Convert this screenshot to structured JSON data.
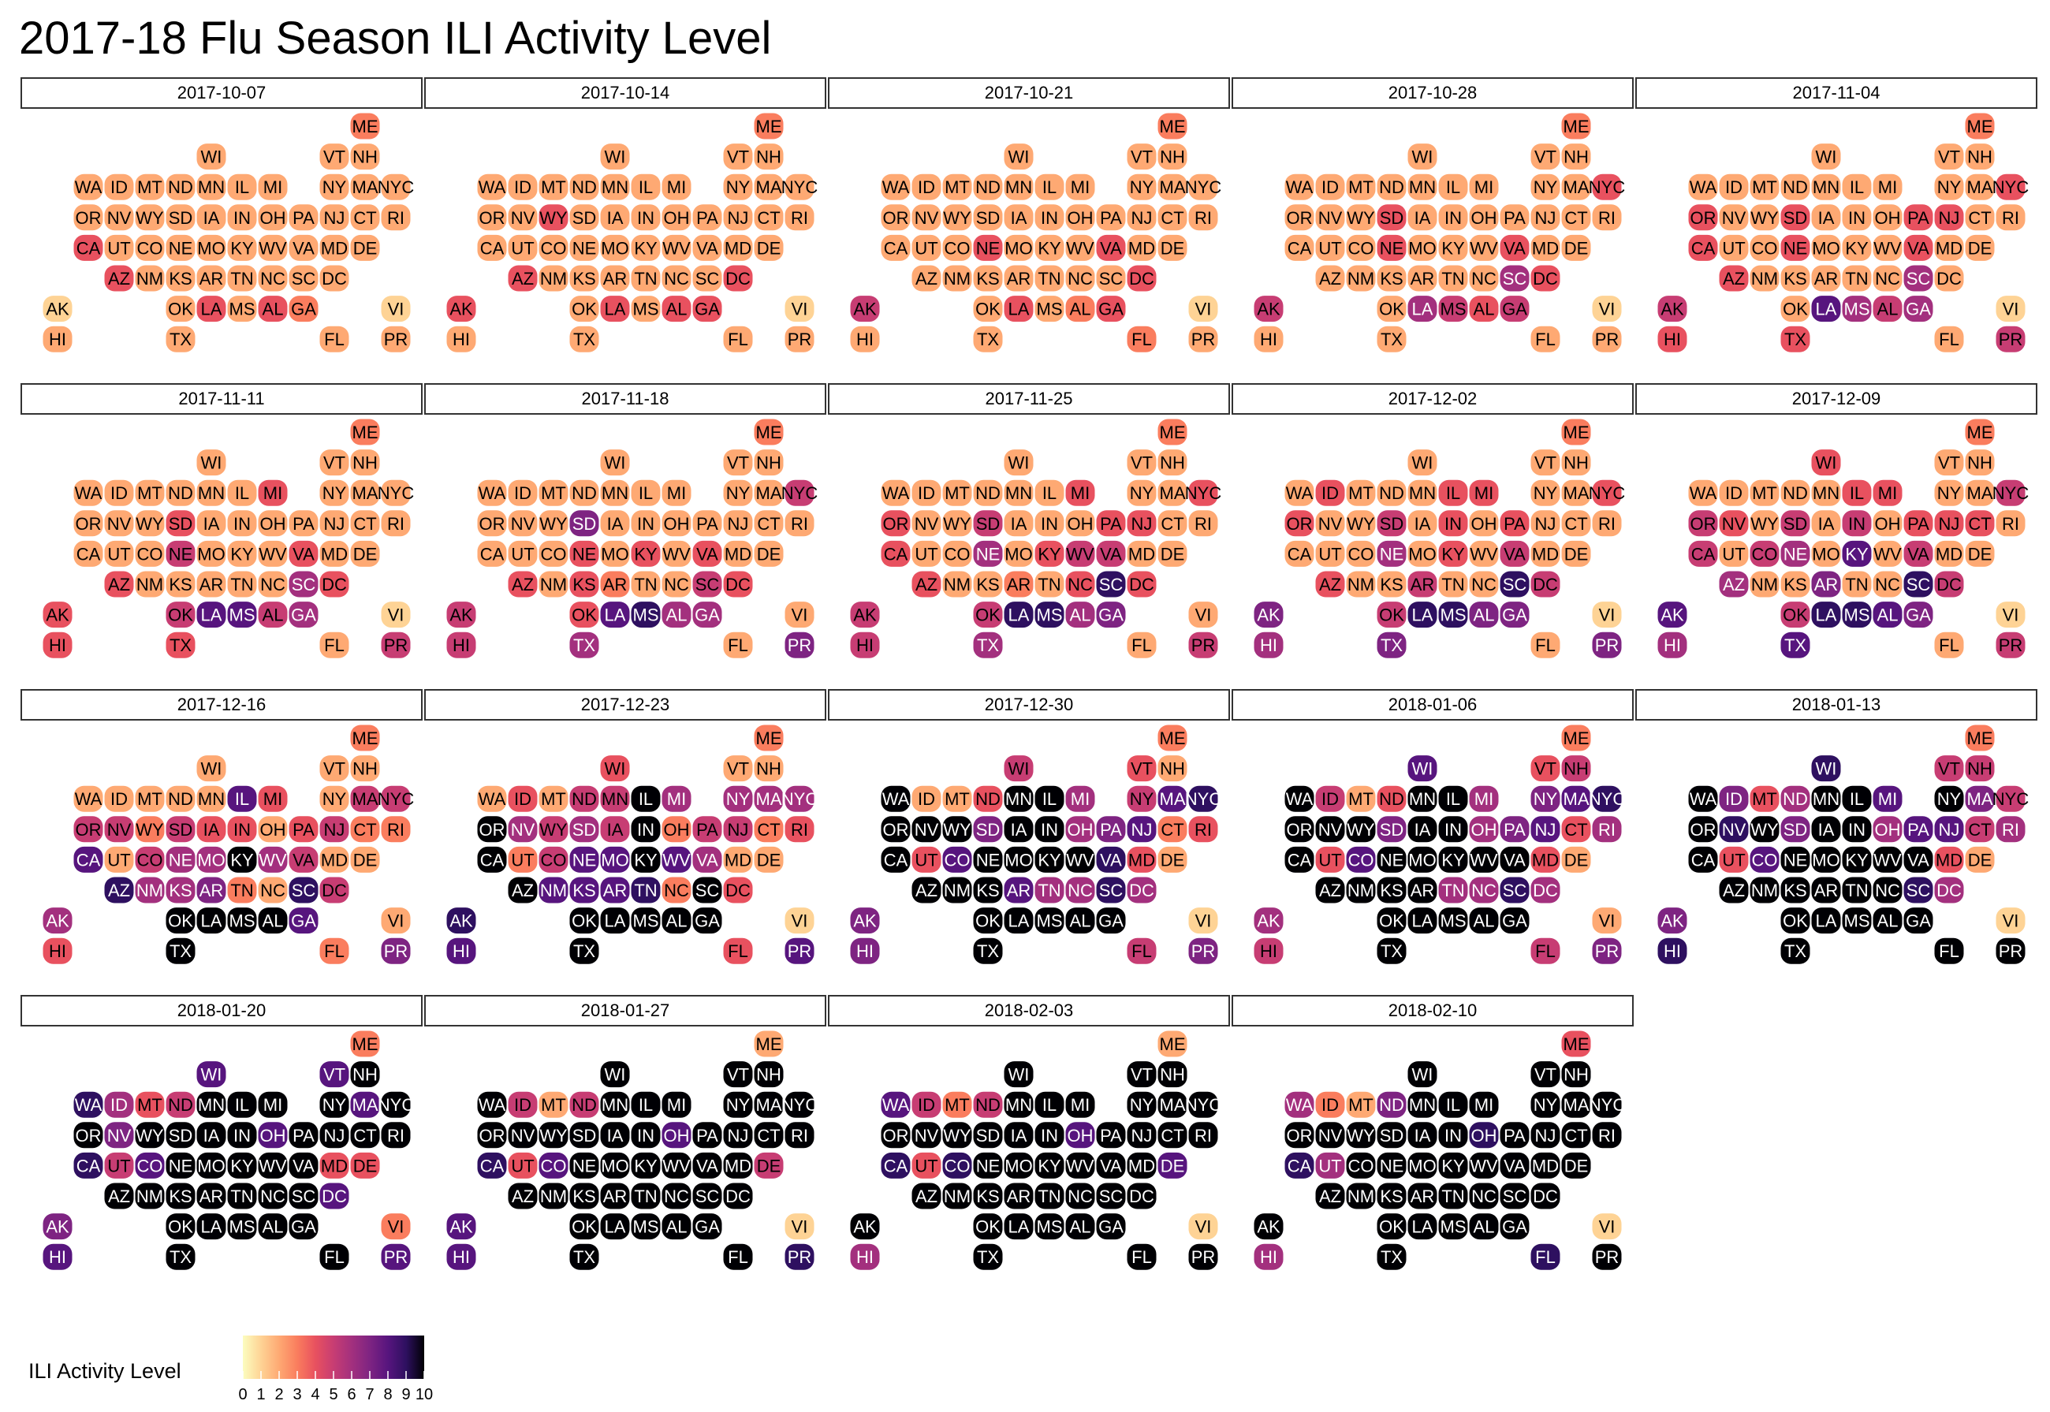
{
  "chart_data": {
    "type": "heatmap",
    "title": "2017-18 Flu Season ILI Activity Level",
    "legend": {
      "title": "ILI Activity Level",
      "ticks": [
        "0",
        "1",
        "2",
        "3",
        "4",
        "5",
        "6",
        "7",
        "8",
        "9",
        "10"
      ],
      "placement": "bottom-left"
    },
    "colorscale": "magma (reversed)",
    "value_range": [
      0,
      10
    ],
    "weeks": [
      "2017-10-07",
      "2017-10-14",
      "2017-10-21",
      "2017-10-28",
      "2017-11-04",
      "2017-11-11",
      "2017-11-18",
      "2017-11-25",
      "2017-12-02",
      "2017-12-09",
      "2017-12-16",
      "2017-12-23",
      "2017-12-30",
      "2018-01-06",
      "2018-01-13",
      "2018-01-20",
      "2018-01-27",
      "2018-02-03",
      "2018-02-10"
    ],
    "states": [
      "ME",
      "WI",
      "VT",
      "NH",
      "WA",
      "ID",
      "MT",
      "ND",
      "MN",
      "IL",
      "MI",
      "NY",
      "MA",
      "NYC",
      "OR",
      "NV",
      "WY",
      "SD",
      "IA",
      "IN",
      "OH",
      "PA",
      "NJ",
      "CT",
      "RI",
      "CA",
      "UT",
      "CO",
      "NE",
      "MO",
      "KY",
      "WV",
      "VA",
      "MD",
      "DE",
      "AZ",
      "NM",
      "KS",
      "AR",
      "TN",
      "NC",
      "SC",
      "DC",
      "AK",
      "OK",
      "LA",
      "MS",
      "AL",
      "GA",
      "VI",
      "HI",
      "TX",
      "FL",
      "PR"
    ],
    "values": [
      [
        3,
        2,
        2,
        2,
        2,
        2,
        2,
        2,
        2,
        2,
        2,
        2,
        2,
        2,
        2,
        2,
        2,
        2,
        2,
        2,
        2,
        2,
        2,
        2,
        2,
        4,
        2,
        2,
        2,
        2,
        2,
        2,
        2,
        2,
        2,
        4,
        2,
        2,
        2,
        2,
        2,
        2,
        2,
        1,
        2,
        4,
        2,
        4,
        3,
        1,
        2,
        2,
        2,
        2
      ],
      [
        3,
        2,
        2,
        2,
        2,
        2,
        2,
        2,
        2,
        2,
        2,
        2,
        2,
        2,
        2,
        2,
        4,
        2,
        2,
        2,
        2,
        2,
        2,
        2,
        2,
        2,
        2,
        2,
        2,
        2,
        2,
        2,
        2,
        2,
        2,
        4,
        2,
        2,
        2,
        2,
        2,
        2,
        4,
        4,
        2,
        4,
        2,
        4,
        4,
        1,
        2,
        2,
        2,
        2
      ],
      [
        3,
        2,
        2,
        2,
        2,
        2,
        2,
        2,
        2,
        2,
        2,
        2,
        2,
        2,
        2,
        2,
        2,
        2,
        2,
        2,
        2,
        2,
        2,
        2,
        2,
        2,
        2,
        2,
        4,
        2,
        2,
        2,
        4,
        2,
        2,
        2,
        2,
        2,
        2,
        2,
        2,
        2,
        4,
        5,
        2,
        4,
        2,
        3,
        4,
        1,
        2,
        2,
        3,
        2
      ],
      [
        3,
        2,
        2,
        2,
        2,
        2,
        2,
        2,
        2,
        2,
        2,
        2,
        2,
        4,
        2,
        2,
        2,
        4,
        2,
        2,
        2,
        2,
        2,
        2,
        2,
        2,
        2,
        2,
        4,
        2,
        2,
        2,
        4,
        2,
        2,
        2,
        2,
        2,
        2,
        2,
        2,
        6,
        4,
        5,
        2,
        6,
        5,
        4,
        5,
        1,
        2,
        2,
        2,
        2
      ],
      [
        3,
        2,
        2,
        2,
        2,
        2,
        2,
        2,
        2,
        2,
        2,
        2,
        2,
        4,
        4,
        2,
        2,
        4,
        2,
        2,
        2,
        4,
        4,
        2,
        2,
        4,
        2,
        2,
        4,
        2,
        2,
        2,
        4,
        2,
        2,
        4,
        2,
        2,
        2,
        2,
        2,
        6,
        2,
        5,
        2,
        8,
        6,
        5,
        6,
        1,
        4,
        4,
        2,
        5
      ],
      [
        3,
        2,
        2,
        2,
        2,
        2,
        2,
        2,
        2,
        2,
        4,
        2,
        2,
        2,
        2,
        2,
        2,
        4,
        2,
        2,
        2,
        2,
        2,
        2,
        2,
        2,
        2,
        2,
        5,
        2,
        2,
        2,
        4,
        2,
        2,
        4,
        2,
        2,
        2,
        2,
        2,
        6,
        4,
        4,
        5,
        8,
        8,
        5,
        6,
        1,
        4,
        4,
        2,
        5
      ],
      [
        3,
        2,
        2,
        2,
        2,
        2,
        2,
        2,
        2,
        2,
        2,
        2,
        2,
        5,
        2,
        2,
        2,
        7,
        2,
        2,
        2,
        2,
        2,
        2,
        2,
        2,
        2,
        2,
        4,
        2,
        4,
        2,
        4,
        2,
        2,
        4,
        2,
        4,
        3,
        2,
        2,
        5,
        4,
        5,
        4,
        8,
        9,
        6,
        6,
        2,
        5,
        6,
        2,
        7
      ],
      [
        3,
        2,
        2,
        2,
        2,
        2,
        2,
        2,
        2,
        2,
        4,
        2,
        2,
        4,
        4,
        2,
        2,
        5,
        2,
        2,
        2,
        4,
        4,
        2,
        2,
        4,
        2,
        2,
        6,
        2,
        4,
        5,
        5,
        2,
        2,
        4,
        2,
        2,
        3,
        2,
        4,
        9,
        4,
        5,
        5,
        9,
        9,
        6,
        7,
        2,
        5,
        6,
        2,
        5
      ],
      [
        3,
        2,
        2,
        2,
        2,
        4,
        2,
        2,
        2,
        4,
        4,
        2,
        2,
        4,
        4,
        2,
        2,
        5,
        2,
        4,
        2,
        4,
        2,
        2,
        2,
        2,
        2,
        2,
        6,
        2,
        4,
        2,
        5,
        2,
        2,
        4,
        2,
        2,
        5,
        2,
        2,
        9,
        5,
        7,
        5,
        9,
        9,
        7,
        7,
        1,
        6,
        7,
        2,
        7
      ],
      [
        3,
        4,
        2,
        2,
        2,
        2,
        2,
        2,
        2,
        4,
        4,
        2,
        2,
        5,
        5,
        4,
        2,
        5,
        2,
        5,
        2,
        4,
        4,
        4,
        2,
        5,
        2,
        5,
        6,
        2,
        8,
        2,
        5,
        2,
        2,
        6,
        2,
        2,
        7,
        2,
        2,
        9,
        5,
        8,
        5,
        9,
        9,
        8,
        7,
        1,
        6,
        8,
        2,
        5
      ],
      [
        3,
        2,
        2,
        2,
        2,
        2,
        2,
        2,
        2,
        8,
        4,
        2,
        5,
        5,
        5,
        5,
        3,
        5,
        4,
        4,
        2,
        4,
        5,
        3,
        3,
        8,
        2,
        5,
        6,
        6,
        10,
        6,
        5,
        2,
        2,
        9,
        6,
        6,
        7,
        3,
        2,
        9,
        5,
        6,
        10,
        10,
        10,
        10,
        8,
        2,
        4,
        10,
        3,
        7
      ],
      [
        3,
        4,
        2,
        2,
        2,
        4,
        2,
        5,
        5,
        10,
        6,
        6,
        6,
        6,
        10,
        6,
        5,
        6,
        5,
        10,
        3,
        5,
        5,
        3,
        4,
        10,
        3,
        5,
        8,
        8,
        10,
        8,
        6,
        2,
        2,
        10,
        8,
        8,
        8,
        9,
        3,
        10,
        4,
        9,
        10,
        10,
        10,
        10,
        10,
        1,
        8,
        10,
        4,
        8
      ],
      [
        3,
        5,
        4,
        2,
        10,
        2,
        2,
        4,
        10,
        10,
        6,
        5,
        8,
        9,
        10,
        10,
        10,
        7,
        10,
        10,
        6,
        7,
        8,
        3,
        4,
        10,
        4,
        8,
        10,
        10,
        10,
        10,
        9,
        4,
        2,
        10,
        10,
        10,
        8,
        6,
        6,
        9,
        6,
        7,
        10,
        10,
        10,
        10,
        10,
        1,
        7,
        10,
        5,
        7
      ],
      [
        3,
        8,
        4,
        5,
        10,
        5,
        2,
        4,
        10,
        10,
        6,
        7,
        8,
        9,
        10,
        10,
        10,
        7,
        10,
        10,
        6,
        7,
        8,
        4,
        6,
        10,
        4,
        8,
        10,
        10,
        10,
        10,
        10,
        4,
        2,
        10,
        10,
        10,
        10,
        6,
        6,
        9,
        6,
        6,
        10,
        10,
        10,
        10,
        10,
        2,
        5,
        10,
        5,
        7
      ],
      [
        3,
        9,
        5,
        5,
        10,
        7,
        4,
        6,
        10,
        10,
        8,
        10,
        7,
        5,
        10,
        9,
        10,
        7,
        10,
        10,
        6,
        8,
        8,
        5,
        6,
        10,
        4,
        8,
        10,
        10,
        10,
        10,
        10,
        4,
        2,
        10,
        10,
        10,
        10,
        10,
        10,
        9,
        6,
        7,
        10,
        10,
        10,
        10,
        10,
        1,
        9,
        10,
        10,
        10
      ],
      [
        3,
        8,
        8,
        10,
        9,
        6,
        4,
        5,
        10,
        10,
        10,
        10,
        8,
        10,
        10,
        7,
        10,
        10,
        10,
        10,
        8,
        10,
        10,
        10,
        10,
        9,
        5,
        8,
        10,
        10,
        10,
        10,
        10,
        4,
        4,
        10,
        10,
        10,
        10,
        10,
        10,
        10,
        8,
        7,
        10,
        10,
        10,
        10,
        10,
        3,
        8,
        10,
        10,
        8
      ],
      [
        2,
        10,
        10,
        10,
        10,
        5,
        2,
        5,
        10,
        10,
        10,
        10,
        10,
        10,
        10,
        10,
        10,
        10,
        10,
        10,
        8,
        10,
        10,
        10,
        10,
        9,
        4,
        8,
        10,
        10,
        10,
        10,
        10,
        10,
        5,
        10,
        10,
        10,
        10,
        10,
        10,
        10,
        10,
        8,
        10,
        10,
        10,
        10,
        10,
        1,
        8,
        10,
        10,
        9
      ],
      [
        2,
        10,
        10,
        10,
        8,
        5,
        3,
        5,
        10,
        10,
        10,
        10,
        10,
        10,
        10,
        10,
        10,
        10,
        10,
        10,
        8,
        10,
        10,
        10,
        10,
        9,
        4,
        9,
        10,
        10,
        10,
        10,
        10,
        10,
        8,
        10,
        10,
        10,
        10,
        10,
        10,
        10,
        10,
        10,
        10,
        10,
        10,
        10,
        10,
        1,
        6,
        10,
        10,
        10
      ],
      [
        4,
        10,
        10,
        10,
        6,
        3,
        2,
        7,
        10,
        10,
        10,
        10,
        10,
        10,
        10,
        10,
        10,
        10,
        10,
        10,
        9,
        10,
        10,
        10,
        10,
        9,
        6,
        10,
        10,
        10,
        10,
        10,
        10,
        10,
        10,
        10,
        10,
        10,
        10,
        10,
        10,
        10,
        10,
        10,
        10,
        10,
        10,
        10,
        10,
        1,
        6,
        10,
        9,
        10
      ]
    ]
  }
}
